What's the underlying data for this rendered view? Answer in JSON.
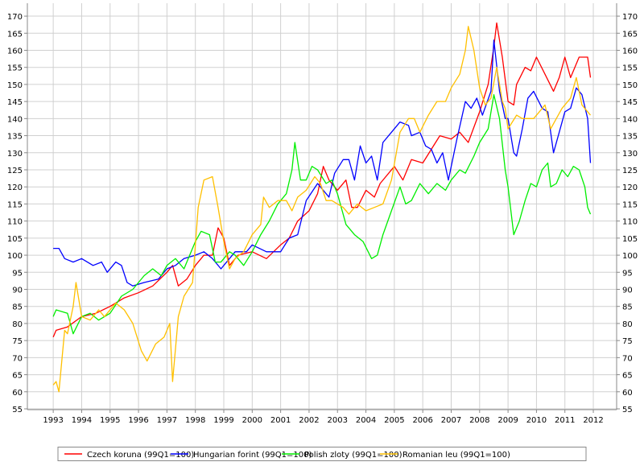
{
  "chart_data": {
    "type": "line",
    "title": "",
    "xlabel": "",
    "ylabel": "",
    "xlim": [
      1992.09,
      2012.82
    ],
    "ylim": [
      55,
      173
    ],
    "x_ticks": [
      "1993",
      "1994",
      "1995",
      "1996",
      "1997",
      "1998",
      "1999",
      "2000",
      "2001",
      "2002",
      "2003",
      "2004",
      "2005",
      "2006",
      "2007",
      "2008",
      "2009",
      "2010",
      "2011",
      "2012"
    ],
    "y_ticks": [
      55,
      60,
      65,
      70,
      75,
      80,
      85,
      90,
      95,
      100,
      105,
      110,
      115,
      120,
      125,
      130,
      135,
      140,
      145,
      150,
      155,
      160,
      165,
      170
    ],
    "grid": true,
    "legend_placement": "bottom",
    "series": [
      {
        "name": "Czech koruna (99Q1=100)",
        "color": "#ff0000",
        "points": [
          [
            1993.0,
            76
          ],
          [
            1993.1,
            78
          ],
          [
            1993.5,
            79
          ],
          [
            1994.0,
            82
          ],
          [
            1994.5,
            83
          ],
          [
            1995.0,
            85
          ],
          [
            1995.5,
            87.5
          ],
          [
            1996.0,
            89
          ],
          [
            1996.5,
            91
          ],
          [
            1997.0,
            95
          ],
          [
            1997.2,
            97
          ],
          [
            1997.4,
            91
          ],
          [
            1997.7,
            93
          ],
          [
            1998.0,
            97
          ],
          [
            1998.3,
            100
          ],
          [
            1998.6,
            100
          ],
          [
            1998.8,
            108
          ],
          [
            1999.0,
            105
          ],
          [
            1999.2,
            97
          ],
          [
            1999.5,
            100
          ],
          [
            2000.0,
            101
          ],
          [
            2000.5,
            99
          ],
          [
            2001.0,
            103
          ],
          [
            2001.3,
            105
          ],
          [
            2001.6,
            110
          ],
          [
            2002.0,
            113
          ],
          [
            2002.3,
            118
          ],
          [
            2002.5,
            126
          ],
          [
            2002.7,
            122
          ],
          [
            2003.0,
            119
          ],
          [
            2003.3,
            122
          ],
          [
            2003.5,
            114
          ],
          [
            2003.7,
            114
          ],
          [
            2004.0,
            119
          ],
          [
            2004.3,
            117
          ],
          [
            2004.5,
            121
          ],
          [
            2005.0,
            126
          ],
          [
            2005.3,
            122
          ],
          [
            2005.6,
            128
          ],
          [
            2006.0,
            127
          ],
          [
            2006.3,
            131
          ],
          [
            2006.6,
            135
          ],
          [
            2007.0,
            134
          ],
          [
            2007.3,
            136
          ],
          [
            2007.6,
            133
          ],
          [
            2008.0,
            142
          ],
          [
            2008.3,
            150
          ],
          [
            2008.5,
            161
          ],
          [
            2008.6,
            168
          ],
          [
            2008.8,
            158
          ],
          [
            2009.0,
            145
          ],
          [
            2009.2,
            144
          ],
          [
            2009.3,
            150
          ],
          [
            2009.6,
            155
          ],
          [
            2009.8,
            154
          ],
          [
            2010.0,
            158
          ],
          [
            2010.3,
            153
          ],
          [
            2010.6,
            148
          ],
          [
            2010.8,
            152
          ],
          [
            2011.0,
            158
          ],
          [
            2011.2,
            152
          ],
          [
            2011.5,
            158
          ],
          [
            2011.8,
            158
          ],
          [
            2011.9,
            152
          ]
        ]
      },
      {
        "name": "Hungarian forint (99Q1=100)",
        "color": "#0000ff",
        "points": [
          [
            1993.0,
            102
          ],
          [
            1993.2,
            102
          ],
          [
            1993.4,
            99
          ],
          [
            1993.7,
            98
          ],
          [
            1994.0,
            99
          ],
          [
            1994.4,
            97
          ],
          [
            1994.7,
            98
          ],
          [
            1994.9,
            95
          ],
          [
            1995.2,
            98
          ],
          [
            1995.4,
            97
          ],
          [
            1995.6,
            92
          ],
          [
            1995.8,
            91
          ],
          [
            1996.2,
            92
          ],
          [
            1996.7,
            93
          ],
          [
            1997.0,
            96
          ],
          [
            1997.3,
            97
          ],
          [
            1997.6,
            99
          ],
          [
            1998.0,
            100
          ],
          [
            1998.3,
            101
          ],
          [
            1998.6,
            99
          ],
          [
            1998.9,
            96
          ],
          [
            1999.1,
            98
          ],
          [
            1999.4,
            101
          ],
          [
            1999.8,
            101
          ],
          [
            2000.0,
            103
          ],
          [
            2000.5,
            101
          ],
          [
            2001.0,
            101
          ],
          [
            2001.3,
            105
          ],
          [
            2001.6,
            106
          ],
          [
            2001.9,
            116
          ],
          [
            2002.3,
            121
          ],
          [
            2002.7,
            117
          ],
          [
            2002.9,
            124
          ],
          [
            2003.2,
            128
          ],
          [
            2003.4,
            128
          ],
          [
            2003.6,
            122
          ],
          [
            2003.8,
            132
          ],
          [
            2004.0,
            127
          ],
          [
            2004.2,
            129
          ],
          [
            2004.4,
            122
          ],
          [
            2004.6,
            133
          ],
          [
            2004.9,
            136
          ],
          [
            2005.2,
            139
          ],
          [
            2005.5,
            138
          ],
          [
            2005.6,
            135
          ],
          [
            2005.9,
            136
          ],
          [
            2006.1,
            132
          ],
          [
            2006.3,
            131
          ],
          [
            2006.5,
            127
          ],
          [
            2006.7,
            130
          ],
          [
            2006.9,
            122
          ],
          [
            2007.2,
            134
          ],
          [
            2007.5,
            145
          ],
          [
            2007.7,
            143
          ],
          [
            2007.9,
            146
          ],
          [
            2008.1,
            141
          ],
          [
            2008.4,
            148
          ],
          [
            2008.5,
            163
          ],
          [
            2008.7,
            148
          ],
          [
            2008.9,
            140
          ],
          [
            2009.0,
            140
          ],
          [
            2009.2,
            130
          ],
          [
            2009.3,
            129
          ],
          [
            2009.5,
            137
          ],
          [
            2009.7,
            146
          ],
          [
            2009.9,
            148
          ],
          [
            2010.2,
            143
          ],
          [
            2010.4,
            142
          ],
          [
            2010.6,
            130
          ],
          [
            2010.8,
            136
          ],
          [
            2011.0,
            142
          ],
          [
            2011.2,
            143
          ],
          [
            2011.4,
            149
          ],
          [
            2011.6,
            147
          ],
          [
            2011.8,
            140
          ],
          [
            2011.9,
            127
          ]
        ]
      },
      {
        "name": "Polish zloty (99Q1=100)",
        "color": "#00ee00",
        "points": [
          [
            1993.0,
            82
          ],
          [
            1993.1,
            84
          ],
          [
            1993.5,
            83
          ],
          [
            1993.7,
            77
          ],
          [
            1994.0,
            82
          ],
          [
            1994.3,
            83
          ],
          [
            1994.6,
            81
          ],
          [
            1995.0,
            83
          ],
          [
            1995.4,
            88
          ],
          [
            1995.8,
            90
          ],
          [
            1996.2,
            94
          ],
          [
            1996.5,
            96
          ],
          [
            1996.8,
            94
          ],
          [
            1997.0,
            97
          ],
          [
            1997.3,
            99
          ],
          [
            1997.6,
            96
          ],
          [
            1997.8,
            100
          ],
          [
            1998.0,
            104
          ],
          [
            1998.2,
            107
          ],
          [
            1998.5,
            106
          ],
          [
            1998.7,
            98
          ],
          [
            1998.9,
            98
          ],
          [
            1999.2,
            101
          ],
          [
            1999.4,
            100
          ],
          [
            1999.7,
            97
          ],
          [
            2000.0,
            101
          ],
          [
            2000.3,
            106
          ],
          [
            2000.6,
            110
          ],
          [
            2000.9,
            115
          ],
          [
            2001.2,
            118
          ],
          [
            2001.4,
            125
          ],
          [
            2001.5,
            133
          ],
          [
            2001.7,
            122
          ],
          [
            2001.9,
            122
          ],
          [
            2002.1,
            126
          ],
          [
            2002.3,
            125
          ],
          [
            2002.6,
            121
          ],
          [
            2002.8,
            122
          ],
          [
            2003.0,
            118
          ],
          [
            2003.3,
            109
          ],
          [
            2003.6,
            106
          ],
          [
            2003.9,
            104
          ],
          [
            2004.2,
            99
          ],
          [
            2004.4,
            100
          ],
          [
            2004.6,
            106
          ],
          [
            2004.9,
            113
          ],
          [
            2005.2,
            120
          ],
          [
            2005.4,
            115
          ],
          [
            2005.6,
            116
          ],
          [
            2005.9,
            121
          ],
          [
            2006.2,
            118
          ],
          [
            2006.5,
            121
          ],
          [
            2006.8,
            119
          ],
          [
            2007.0,
            122
          ],
          [
            2007.3,
            125
          ],
          [
            2007.5,
            124
          ],
          [
            2007.8,
            129
          ],
          [
            2008.0,
            133
          ],
          [
            2008.3,
            137
          ],
          [
            2008.5,
            147
          ],
          [
            2008.7,
            140
          ],
          [
            2008.9,
            125
          ],
          [
            2009.0,
            120
          ],
          [
            2009.2,
            106
          ],
          [
            2009.4,
            110
          ],
          [
            2009.6,
            116
          ],
          [
            2009.8,
            121
          ],
          [
            2010.0,
            120
          ],
          [
            2010.2,
            125
          ],
          [
            2010.4,
            127
          ],
          [
            2010.5,
            120
          ],
          [
            2010.7,
            121
          ],
          [
            2010.9,
            125
          ],
          [
            2011.1,
            123
          ],
          [
            2011.3,
            126
          ],
          [
            2011.5,
            125
          ],
          [
            2011.7,
            120
          ],
          [
            2011.8,
            114
          ],
          [
            2011.9,
            112
          ]
        ]
      },
      {
        "name": "Romanian leu (99Q1=100)",
        "color": "#ffc000",
        "points": [
          [
            1993.0,
            62
          ],
          [
            1993.1,
            63
          ],
          [
            1993.2,
            60
          ],
          [
            1993.4,
            78
          ],
          [
            1993.5,
            77
          ],
          [
            1993.7,
            85
          ],
          [
            1993.8,
            92
          ],
          [
            1994.0,
            82
          ],
          [
            1994.3,
            81
          ],
          [
            1994.6,
            84
          ],
          [
            1994.8,
            82
          ],
          [
            1995.2,
            86
          ],
          [
            1995.5,
            84
          ],
          [
            1995.8,
            80
          ],
          [
            1996.1,
            72
          ],
          [
            1996.3,
            69
          ],
          [
            1996.6,
            74
          ],
          [
            1996.9,
            76
          ],
          [
            1997.1,
            80
          ],
          [
            1997.2,
            63
          ],
          [
            1997.4,
            82
          ],
          [
            1997.6,
            88
          ],
          [
            1997.9,
            92
          ],
          [
            1998.1,
            114
          ],
          [
            1998.3,
            122
          ],
          [
            1998.6,
            123
          ],
          [
            1998.8,
            114
          ],
          [
            1999.0,
            104
          ],
          [
            1999.2,
            96
          ],
          [
            1999.4,
            99
          ],
          [
            1999.7,
            101
          ],
          [
            2000.0,
            106
          ],
          [
            2000.3,
            109
          ],
          [
            2000.4,
            117
          ],
          [
            2000.6,
            114
          ],
          [
            2000.9,
            116
          ],
          [
            2001.2,
            116
          ],
          [
            2001.4,
            113
          ],
          [
            2001.6,
            117
          ],
          [
            2001.9,
            119
          ],
          [
            2002.2,
            123
          ],
          [
            2002.4,
            121
          ],
          [
            2002.6,
            116
          ],
          [
            2002.8,
            116
          ],
          [
            2003.2,
            114
          ],
          [
            2003.4,
            112
          ],
          [
            2003.7,
            115
          ],
          [
            2004.0,
            113
          ],
          [
            2004.3,
            114
          ],
          [
            2004.6,
            115
          ],
          [
            2004.9,
            122
          ],
          [
            2005.2,
            136
          ],
          [
            2005.5,
            140
          ],
          [
            2005.7,
            140
          ],
          [
            2005.9,
            136
          ],
          [
            2006.2,
            141
          ],
          [
            2006.5,
            145
          ],
          [
            2006.8,
            145
          ],
          [
            2007.0,
            149
          ],
          [
            2007.3,
            153
          ],
          [
            2007.5,
            160
          ],
          [
            2007.6,
            167
          ],
          [
            2007.8,
            160
          ],
          [
            2008.0,
            149
          ],
          [
            2008.2,
            144
          ],
          [
            2008.4,
            146
          ],
          [
            2008.6,
            155
          ],
          [
            2008.8,
            145
          ],
          [
            2008.9,
            143
          ],
          [
            2009.0,
            137
          ],
          [
            2009.3,
            141
          ],
          [
            2009.5,
            140
          ],
          [
            2009.9,
            140
          ],
          [
            2010.1,
            142
          ],
          [
            2010.3,
            144
          ],
          [
            2010.5,
            137
          ],
          [
            2010.7,
            140
          ],
          [
            2010.9,
            143
          ],
          [
            2011.2,
            146
          ],
          [
            2011.4,
            152
          ],
          [
            2011.6,
            144
          ],
          [
            2011.9,
            141
          ]
        ]
      }
    ]
  }
}
